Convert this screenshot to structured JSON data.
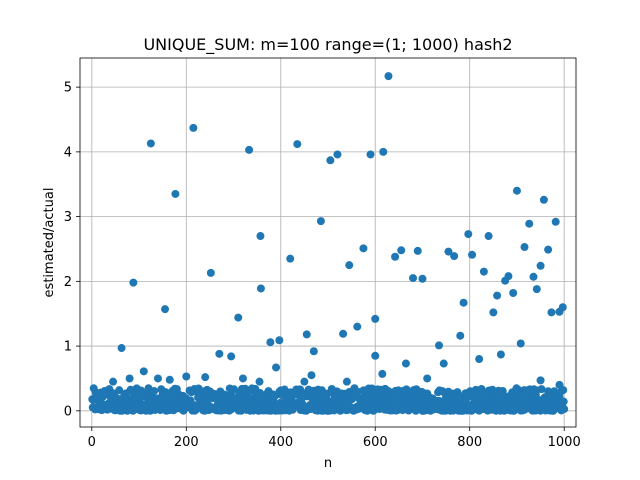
{
  "chart_data": {
    "type": "scatter",
    "title": "UNIQUE_SUM: m=100 range=(1; 1000) hash2",
    "xlabel": "n",
    "ylabel": "estimated/actual",
    "xlim": [
      -25,
      1025
    ],
    "ylim": [
      -0.25,
      5.45
    ],
    "xticks": [
      0,
      200,
      400,
      600,
      800,
      1000
    ],
    "yticks": [
      0,
      1,
      2,
      3,
      4,
      5
    ],
    "grid": true,
    "marker_color": "#1f77b4",
    "outliers": [
      {
        "x": 63,
        "y": 0.97
      },
      {
        "x": 88,
        "y": 1.98
      },
      {
        "x": 125,
        "y": 4.13
      },
      {
        "x": 155,
        "y": 1.57
      },
      {
        "x": 177,
        "y": 3.35
      },
      {
        "x": 215,
        "y": 4.37
      },
      {
        "x": 252,
        "y": 2.13
      },
      {
        "x": 310,
        "y": 1.44
      },
      {
        "x": 333,
        "y": 4.03
      },
      {
        "x": 357,
        "y": 2.7
      },
      {
        "x": 358,
        "y": 1.89
      },
      {
        "x": 378,
        "y": 1.06
      },
      {
        "x": 397,
        "y": 1.09
      },
      {
        "x": 420,
        "y": 2.35
      },
      {
        "x": 435,
        "y": 4.12
      },
      {
        "x": 455,
        "y": 1.18
      },
      {
        "x": 470,
        "y": 0.92
      },
      {
        "x": 485,
        "y": 2.93
      },
      {
        "x": 505,
        "y": 3.87
      },
      {
        "x": 520,
        "y": 3.96
      },
      {
        "x": 532,
        "y": 1.19
      },
      {
        "x": 545,
        "y": 2.25
      },
      {
        "x": 562,
        "y": 1.3
      },
      {
        "x": 575,
        "y": 2.51
      },
      {
        "x": 590,
        "y": 3.96
      },
      {
        "x": 600,
        "y": 1.42
      },
      {
        "x": 617,
        "y": 4.0
      },
      {
        "x": 628,
        "y": 5.17
      },
      {
        "x": 642,
        "y": 2.38
      },
      {
        "x": 655,
        "y": 2.48
      },
      {
        "x": 680,
        "y": 2.05
      },
      {
        "x": 690,
        "y": 2.47
      },
      {
        "x": 700,
        "y": 2.04
      },
      {
        "x": 735,
        "y": 1.01
      },
      {
        "x": 755,
        "y": 2.46
      },
      {
        "x": 767,
        "y": 2.39
      },
      {
        "x": 780,
        "y": 1.16
      },
      {
        "x": 787,
        "y": 1.67
      },
      {
        "x": 797,
        "y": 2.73
      },
      {
        "x": 805,
        "y": 2.41
      },
      {
        "x": 820,
        "y": 0.8
      },
      {
        "x": 830,
        "y": 2.15
      },
      {
        "x": 840,
        "y": 2.7
      },
      {
        "x": 850,
        "y": 1.52
      },
      {
        "x": 858,
        "y": 1.78
      },
      {
        "x": 866,
        "y": 0.87
      },
      {
        "x": 875,
        "y": 2.01
      },
      {
        "x": 882,
        "y": 2.08
      },
      {
        "x": 892,
        "y": 1.82
      },
      {
        "x": 900,
        "y": 3.4
      },
      {
        "x": 908,
        "y": 1.04
      },
      {
        "x": 916,
        "y": 2.53
      },
      {
        "x": 926,
        "y": 2.89
      },
      {
        "x": 935,
        "y": 2.07
      },
      {
        "x": 942,
        "y": 1.88
      },
      {
        "x": 950,
        "y": 2.24
      },
      {
        "x": 957,
        "y": 3.26
      },
      {
        "x": 966,
        "y": 2.49
      },
      {
        "x": 973,
        "y": 1.52
      },
      {
        "x": 982,
        "y": 2.92
      },
      {
        "x": 990,
        "y": 1.53
      },
      {
        "x": 997,
        "y": 1.6
      },
      {
        "x": 45,
        "y": 0.45
      },
      {
        "x": 80,
        "y": 0.5
      },
      {
        "x": 110,
        "y": 0.61
      },
      {
        "x": 140,
        "y": 0.5
      },
      {
        "x": 165,
        "y": 0.48
      },
      {
        "x": 200,
        "y": 0.53
      },
      {
        "x": 240,
        "y": 0.52
      },
      {
        "x": 270,
        "y": 0.88
      },
      {
        "x": 295,
        "y": 0.84
      },
      {
        "x": 320,
        "y": 0.5
      },
      {
        "x": 355,
        "y": 0.45
      },
      {
        "x": 390,
        "y": 0.67
      },
      {
        "x": 450,
        "y": 0.45
      },
      {
        "x": 465,
        "y": 0.55
      },
      {
        "x": 540,
        "y": 0.45
      },
      {
        "x": 600,
        "y": 0.85
      },
      {
        "x": 615,
        "y": 0.57
      },
      {
        "x": 665,
        "y": 0.73
      },
      {
        "x": 710,
        "y": 0.5
      },
      {
        "x": 745,
        "y": 0.73
      },
      {
        "x": 950,
        "y": 0.47
      },
      {
        "x": 990,
        "y": 0.4
      }
    ],
    "bulk": {
      "x_range": [
        1,
        1000
      ],
      "count": 1000,
      "y_typical_min": 0.0,
      "y_typical_max": 0.35
    }
  }
}
